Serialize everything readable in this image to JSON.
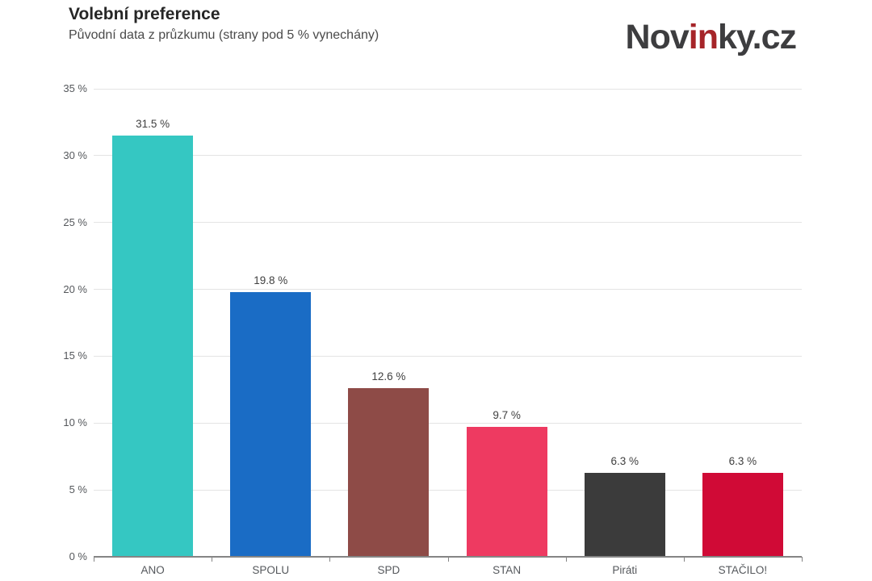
{
  "header": {
    "title": "Volební preference",
    "subtitle": "Původní data z průzkumu (strany pod 5 % vynechány)",
    "logo": {
      "part1": "Nov",
      "part2": "in",
      "part3": "ky.cz",
      "dark_color": "#3d3d3f",
      "red_color": "#a62529"
    }
  },
  "chart_data": {
    "type": "bar",
    "title": "Volební preference",
    "subtitle": "Původní data z průzkumu (strany pod 5 % vynechány)",
    "categories": [
      "ANO",
      "SPOLU",
      "SPD",
      "STAN",
      "Piráti",
      "STAČILO!"
    ],
    "values": [
      31.5,
      19.8,
      12.6,
      9.7,
      6.3,
      6.3
    ],
    "value_labels": [
      "31.5 %",
      "19.8 %",
      "12.6 %",
      "9.7 %",
      "6.3 %",
      "6.3 %"
    ],
    "bar_colors": [
      "#35c7c2",
      "#1a6cc5",
      "#8e4b47",
      "#ee3a61",
      "#3b3b3b",
      "#d00a36"
    ],
    "xlabel": "",
    "ylabel": "",
    "ylim": [
      0,
      35
    ],
    "yticks": [
      0,
      5,
      10,
      15,
      20,
      25,
      30,
      35
    ],
    "ytick_labels": [
      "0 %",
      "5 %",
      "10 %",
      "15 %",
      "20 %",
      "25 %",
      "30 %",
      "35 %"
    ],
    "grid": "horizontal",
    "legend": "none",
    "gridline_color": "#e4e4e4",
    "axis_color": "#858585",
    "label_color": "#55585c",
    "value_label_color": "#404040"
  }
}
